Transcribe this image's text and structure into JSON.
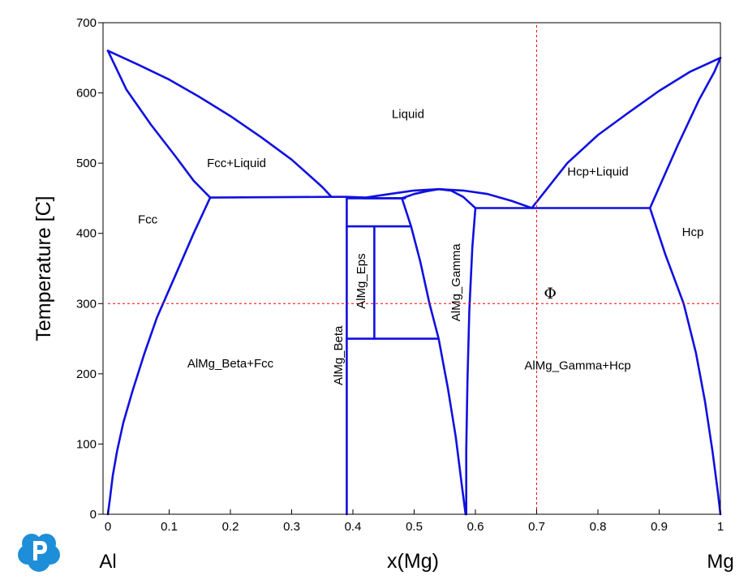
{
  "chart_data": {
    "type": "line",
    "title": "",
    "xlabel": "x(Mg)",
    "ylabel": "Temperature [C]",
    "x_left_label": "Al",
    "x_right_label": "Mg",
    "xlim": [
      0,
      1
    ],
    "ylim": [
      0,
      700
    ],
    "x_ticks": [
      0,
      0.1,
      0.2,
      0.3,
      0.4,
      0.5,
      0.6,
      0.7,
      0.8,
      0.9,
      1
    ],
    "x_tick_labels": [
      "0",
      "0.1",
      "0.2",
      "0.3",
      "0.4",
      "0.5",
      "0.6",
      "0.7",
      "0.8",
      "0.9",
      "1"
    ],
    "y_ticks": [
      0,
      100,
      200,
      300,
      400,
      500,
      600,
      700
    ],
    "y_tick_labels": [
      "0",
      "100",
      "200",
      "300",
      "400",
      "500",
      "600",
      "700"
    ],
    "grid": false,
    "line_color": "#1010e0",
    "marker_color": "#ff0000",
    "phase_boundaries": [
      {
        "name": "fcc-liquidus",
        "x": [
          0,
          0.05,
          0.1,
          0.15,
          0.2,
          0.25,
          0.3,
          0.35,
          0.365
        ],
        "y": [
          660,
          640,
          619,
          594,
          567,
          537,
          505,
          466,
          452
        ]
      },
      {
        "name": "fcc-solidus",
        "x": [
          0,
          0.03,
          0.07,
          0.11,
          0.14,
          0.167
        ],
        "y": [
          660,
          605,
          555,
          510,
          475,
          451
        ]
      },
      {
        "name": "fcc-solvus",
        "x": [
          0.167,
          0.14,
          0.11,
          0.08,
          0.06,
          0.04,
          0.025,
          0.015,
          0.008,
          0.003,
          0
        ],
        "y": [
          451,
          400,
          340,
          280,
          230,
          175,
          130,
          90,
          55,
          20,
          0
        ]
      },
      {
        "name": "eutectic-beta-fcc",
        "x": [
          0.167,
          0.365
        ],
        "y": [
          451,
          452
        ]
      },
      {
        "name": "beta-liquidus-dome",
        "x": [
          0.365,
          0.39,
          0.42
        ],
        "y": [
          452,
          452,
          451
        ]
      },
      {
        "name": "beta-phase-line",
        "x": [
          0.39,
          0.39
        ],
        "y": [
          451,
          0
        ]
      },
      {
        "name": "eps-liquid-line",
        "x": [
          0.39,
          0.42,
          0.48
        ],
        "y": [
          451,
          450,
          450
        ]
      },
      {
        "name": "peritectic-eps",
        "x": [
          0.39,
          0.485
        ],
        "y": [
          450,
          450
        ]
      },
      {
        "name": "eps-upper",
        "x": [
          0.39,
          0.495
        ],
        "y": [
          410,
          410
        ]
      },
      {
        "name": "eps-lower",
        "x": [
          0.39,
          0.538
        ],
        "y": [
          250,
          250
        ]
      },
      {
        "name": "eps-boundary",
        "x": [
          0.435,
          0.435
        ],
        "y": [
          410,
          250
        ]
      },
      {
        "name": "central-liquidus",
        "x": [
          0.42,
          0.46,
          0.5,
          0.54,
          0.58,
          0.62,
          0.66,
          0.692
        ],
        "y": [
          451,
          456,
          461,
          463,
          461,
          456,
          446,
          436
        ]
      },
      {
        "name": "gamma-left-upper",
        "x": [
          0.48,
          0.5,
          0.52,
          0.54,
          0.56,
          0.58,
          0.6
        ],
        "y": [
          450,
          456,
          460,
          463,
          461,
          452,
          436
        ]
      },
      {
        "name": "gamma-left-solvus",
        "x": [
          0.48,
          0.495,
          0.51,
          0.525,
          0.54,
          0.555,
          0.568,
          0.578,
          0.584
        ],
        "y": [
          450,
          410,
          360,
          300,
          250,
          180,
          110,
          40,
          0
        ]
      },
      {
        "name": "gamma-right-solvus",
        "x": [
          0.6,
          0.595,
          0.59,
          0.587,
          0.585,
          0.585
        ],
        "y": [
          436,
          380,
          290,
          190,
          90,
          0
        ]
      },
      {
        "name": "hcp-eutectic",
        "x": [
          0.6,
          0.692,
          0.885
        ],
        "y": [
          436,
          436,
          436
        ]
      },
      {
        "name": "hcp-liquidus",
        "x": [
          0.692,
          0.75,
          0.8,
          0.85,
          0.9,
          0.95,
          1
        ],
        "y": [
          436,
          500,
          540,
          572,
          603,
          630,
          650
        ]
      },
      {
        "name": "hcp-solidus",
        "x": [
          0.885,
          0.93,
          0.965,
          0.99,
          1
        ],
        "y": [
          436,
          525,
          590,
          630,
          650
        ]
      },
      {
        "name": "hcp-solvus",
        "x": [
          0.885,
          0.91,
          0.94,
          0.96,
          0.975,
          0.987,
          0.996,
          1
        ],
        "y": [
          436,
          370,
          300,
          230,
          160,
          90,
          30,
          0
        ]
      }
    ],
    "marker_lines": [
      {
        "name": "vertical-marker",
        "x": [
          0.7,
          0.7
        ],
        "y": [
          0,
          700
        ]
      },
      {
        "name": "horizontal-marker",
        "x": [
          0,
          1
        ],
        "y": [
          300,
          300
        ]
      }
    ],
    "region_labels": [
      {
        "text": "Liquid",
        "x": 0.49,
        "y": 570,
        "rotate": false
      },
      {
        "text": "Fcc+Liquid",
        "x": 0.21,
        "y": 500,
        "rotate": false
      },
      {
        "text": "Hcp+Liquid",
        "x": 0.8,
        "y": 488,
        "rotate": false
      },
      {
        "text": "Fcc",
        "x": 0.065,
        "y": 420,
        "rotate": false
      },
      {
        "text": "Hcp",
        "x": 0.955,
        "y": 402,
        "rotate": false
      },
      {
        "text": "AlMg_Eps",
        "x": 0.413,
        "y": 332,
        "rotate": true
      },
      {
        "text": "AlMg_Gamma",
        "x": 0.568,
        "y": 330,
        "rotate": true
      },
      {
        "text": "AlMg_Beta",
        "x": 0.376,
        "y": 226,
        "rotate": true
      },
      {
        "text": "AlMg_Beta+Fcc",
        "x": 0.2,
        "y": 215,
        "rotate": false
      },
      {
        "text": "AlMg_Gamma+Hcp",
        "x": 0.767,
        "y": 212,
        "rotate": false
      }
    ],
    "marker_symbol": {
      "text": "Φ",
      "x": 0.722,
      "y": 314
    }
  }
}
